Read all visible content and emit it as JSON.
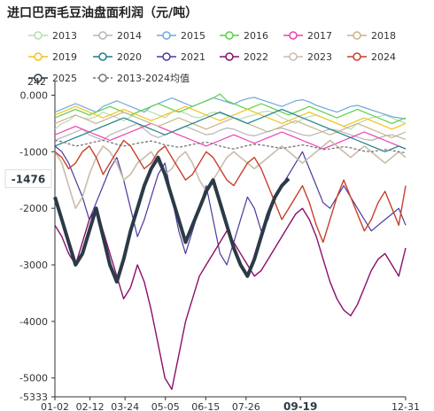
{
  "chart_data": {
    "type": "line",
    "title": "进口巴西毛豆油盘面利润（元/吨）",
    "x_ticks": [
      "01-02",
      "02-12",
      "03-24",
      "05-05",
      "06-15",
      "07-26",
      "09-19",
      "12-31"
    ],
    "x_highlight": "09-19",
    "y_ticks": [
      "0.000",
      "-1000",
      "-2000",
      "-3000",
      "-4000",
      "-5000",
      "-5333"
    ],
    "y_top_label": "242",
    "y_highlight": "-1476",
    "ylim": [
      -5333,
      242
    ],
    "series": [
      {
        "name": "2013",
        "color": "#b8dcb0",
        "dash": false,
        "width": 1.2,
        "values": [
          -600,
          -500,
          -450,
          -350,
          -400,
          -420,
          -380,
          -300,
          -350,
          -400,
          -450,
          -380,
          -300,
          -250,
          -300,
          -350,
          -400,
          -300,
          -280,
          -320,
          -380,
          -400,
          -350,
          -300,
          -320,
          -360,
          -400,
          -420,
          -380,
          -350,
          -300,
          -280,
          -320,
          -400,
          -450,
          -500,
          -420,
          -380,
          -350,
          -400,
          -450,
          -500,
          -550,
          -600,
          -500,
          -450,
          -400,
          -380,
          -350,
          -400,
          -450,
          -500
        ]
      },
      {
        "name": "2014",
        "color": "#b5b5b5",
        "dash": false,
        "width": 1.2,
        "values": [
          -800,
          -750,
          -700,
          -650,
          -600,
          -700,
          -750,
          -800,
          -700,
          -650,
          -600,
          -550,
          -500,
          -600,
          -700,
          -750,
          -700,
          -650,
          -600,
          -550,
          -600,
          -650,
          -700,
          -680,
          -620,
          -580,
          -600,
          -650,
          -700,
          -720,
          -680,
          -640,
          -600,
          -580,
          -620,
          -660,
          -700,
          -720,
          -680,
          -640,
          -600,
          -620,
          -660,
          -700,
          -740,
          -780,
          -800,
          -760,
          -720,
          -700,
          -740,
          -780
        ]
      },
      {
        "name": "2015",
        "color": "#6fa8dc",
        "dash": false,
        "width": 1.2,
        "values": [
          -300,
          -250,
          -200,
          -150,
          -200,
          -250,
          -300,
          -200,
          -150,
          -100,
          -150,
          -200,
          -250,
          -300,
          -200,
          -150,
          -100,
          -50,
          -100,
          -150,
          -200,
          -150,
          -100,
          -50,
          -80,
          -120,
          -160,
          -100,
          -60,
          -40,
          -80,
          -120,
          -160,
          -200,
          -150,
          -100,
          -80,
          -120,
          -180,
          -220,
          -260,
          -300,
          -250,
          -200,
          -180,
          -220,
          -260,
          -300,
          -340,
          -380,
          -400,
          -420
        ]
      },
      {
        "name": "2016",
        "color": "#5ccf4a",
        "dash": false,
        "width": 1.2,
        "values": [
          -400,
          -350,
          -300,
          -250,
          -300,
          -350,
          -300,
          -250,
          -200,
          -250,
          -300,
          -350,
          -300,
          -250,
          -200,
          -150,
          -200,
          -250,
          -300,
          -250,
          -200,
          -150,
          -100,
          -50,
          20,
          -100,
          -150,
          -200,
          -250,
          -200,
          -150,
          -200,
          -250,
          -300,
          -350,
          -300,
          -250,
          -200,
          -250,
          -300,
          -350,
          -400,
          -350,
          -300,
          -250,
          -300,
          -350,
          -400,
          -450,
          -500,
          -450,
          -400
        ]
      },
      {
        "name": "2017",
        "color": "#ef3fb0",
        "dash": false,
        "width": 1.2,
        "values": [
          -700,
          -650,
          -600,
          -550,
          -600,
          -650,
          -700,
          -750,
          -800,
          -750,
          -700,
          -650,
          -600,
          -550,
          -500,
          -550,
          -600,
          -650,
          -700,
          -750,
          -800,
          -850,
          -900,
          -850,
          -800,
          -750,
          -700,
          -750,
          -800,
          -850,
          -800,
          -750,
          -700,
          -650,
          -700,
          -750,
          -800,
          -850,
          -900,
          -950,
          -900,
          -850,
          -800,
          -750,
          -700,
          -650,
          -700,
          -750,
          -800,
          -850,
          -900,
          -950
        ]
      },
      {
        "name": "2018",
        "color": "#c8b48c",
        "dash": false,
        "width": 1.2,
        "values": [
          -500,
          -450,
          -400,
          -350,
          -400,
          -450,
          -500,
          -450,
          -400,
          -350,
          -300,
          -350,
          -400,
          -450,
          -500,
          -550,
          -500,
          -450,
          -400,
          -450,
          -500,
          -550,
          -600,
          -550,
          -500,
          -450,
          -400,
          -450,
          -500,
          -550,
          -600,
          -650,
          -600,
          -550,
          -500,
          -450,
          -500,
          -550,
          -600,
          -650,
          -700,
          -650,
          -600,
          -550,
          -500,
          -550,
          -600,
          -650,
          -700,
          -750,
          -700,
          -650
        ]
      },
      {
        "name": "2019",
        "color": "#f2c21b",
        "dash": false,
        "width": 1.2,
        "values": [
          -350,
          -300,
          -250,
          -200,
          -250,
          -300,
          -350,
          -400,
          -350,
          -300,
          -250,
          -300,
          -350,
          -400,
          -450,
          -400,
          -350,
          -300,
          -250,
          -200,
          -250,
          -300,
          -350,
          -400,
          -450,
          -400,
          -350,
          -300,
          -250,
          -300,
          -350,
          -400,
          -450,
          -500,
          -450,
          -400,
          -350,
          -300,
          -350,
          -400,
          -450,
          -500,
          -550,
          -500,
          -450,
          -400,
          -450,
          -500,
          -550,
          -600,
          -550,
          -500
        ]
      },
      {
        "name": "2020",
        "color": "#1c7f8c",
        "dash": false,
        "width": 1.2,
        "values": [
          -900,
          -850,
          -800,
          -750,
          -700,
          -650,
          -600,
          -550,
          -500,
          -450,
          -400,
          -450,
          -500,
          -550,
          -600,
          -650,
          -700,
          -650,
          -600,
          -550,
          -500,
          -450,
          -400,
          -350,
          -300,
          -350,
          -400,
          -450,
          -500,
          -450,
          -400,
          -350,
          -300,
          -250,
          -300,
          -350,
          -400,
          -450,
          -500,
          -550,
          -600,
          -650,
          -700,
          -750,
          -800,
          -850,
          -900,
          -950,
          -1000,
          -950,
          -900,
          -950
        ]
      },
      {
        "name": "2021",
        "color": "#4a3a9c",
        "dash": false,
        "width": 1.2,
        "values": [
          -900,
          -1000,
          -1200,
          -1500,
          -1800,
          -2200,
          -1900,
          -1600,
          -1300,
          -1100,
          -1500,
          -2000,
          -2500,
          -2200,
          -1800,
          -1400,
          -1200,
          -1800,
          -2400,
          -2800,
          -2400,
          -2000,
          -1600,
          -2200,
          -2800,
          -3000,
          -2600,
          -2200,
          -1800,
          -2000,
          -2400,
          -2200,
          -1800,
          -1600,
          -1400,
          -1200,
          -1000,
          -1300,
          -1600,
          -1900,
          -2000,
          -1800,
          -1600,
          -1800,
          -2000,
          -2200,
          -2400,
          -2300,
          -2200,
          -2100,
          -2000,
          -2300
        ]
      },
      {
        "name": "2022",
        "color": "#8a0f6a",
        "dash": false,
        "width": 1.4,
        "values": [
          -2300,
          -2500,
          -2800,
          -3000,
          -2600,
          -2200,
          -2000,
          -2400,
          -2800,
          -3200,
          -3600,
          -3400,
          -3000,
          -3300,
          -3800,
          -4400,
          -5000,
          -5200,
          -4600,
          -4000,
          -3600,
          -3200,
          -3000,
          -2800,
          -2600,
          -2400,
          -2600,
          -2800,
          -3000,
          -3200,
          -3100,
          -2900,
          -2700,
          -2500,
          -2300,
          -2100,
          -2000,
          -2200,
          -2500,
          -2900,
          -3300,
          -3600,
          -3800,
          -3900,
          -3700,
          -3400,
          -3100,
          -2900,
          -2800,
          -3000,
          -3200,
          -2700
        ]
      },
      {
        "name": "2023",
        "color": "#c9bcaa",
        "dash": false,
        "width": 1.6,
        "values": [
          -1000,
          -1200,
          -1600,
          -2000,
          -1800,
          -1400,
          -1100,
          -900,
          -1000,
          -1200,
          -1500,
          -1400,
          -1200,
          -1100,
          -1000,
          -1200,
          -1400,
          -1300,
          -1100,
          -1000,
          -1200,
          -1500,
          -1700,
          -1500,
          -1300,
          -1100,
          -1000,
          -1100,
          -1200,
          -1300,
          -1200,
          -1100,
          -1000,
          -900,
          -1000,
          -1100,
          -1200,
          -1100,
          -1000,
          -900,
          -800,
          -900,
          -1000,
          -1100,
          -1000,
          -900,
          -1000,
          -1100,
          -1200,
          -1100,
          -1000,
          -1100
        ]
      },
      {
        "name": "2024",
        "color": "#c8402b",
        "dash": false,
        "width": 1.4,
        "values": [
          -1000,
          -1100,
          -1300,
          -1200,
          -1000,
          -900,
          -1100,
          -1400,
          -1200,
          -1000,
          -800,
          -900,
          -1100,
          -1300,
          -1200,
          -1000,
          -900,
          -1100,
          -1300,
          -1500,
          -1400,
          -1200,
          -1000,
          -1100,
          -1300,
          -1500,
          -1600,
          -1400,
          -1200,
          -1100,
          -1300,
          -1600,
          -1900,
          -2200,
          -2000,
          -1800,
          -1600,
          -1900,
          -2300,
          -2600,
          -2200,
          -1800,
          -1500,
          -1800,
          -2100,
          -2400,
          -2200,
          -1900,
          -1700,
          -2000,
          -2300,
          -1600
        ]
      },
      {
        "name": "2025",
        "color": "#2b3a47",
        "dash": false,
        "width": 4,
        "values": [
          -1800,
          -2200,
          -2600,
          -3000,
          -2800,
          -2400,
          -2000,
          -2500,
          -3000,
          -3300,
          -2900,
          -2400,
          -2000,
          -1600,
          -1300,
          -1100,
          -1400,
          -1800,
          -2200,
          -2600,
          -2300,
          -2000,
          -1700,
          -1500,
          -1900,
          -2300,
          -2700,
          -3000,
          -3200,
          -2900,
          -2500,
          -2100,
          -1800,
          -1600,
          -1476
        ]
      },
      {
        "name": "2013-2024均值",
        "color": "#777777",
        "dash": true,
        "width": 1.3,
        "values": [
          -800,
          -820,
          -860,
          -900,
          -880,
          -850,
          -820,
          -800,
          -830,
          -870,
          -900,
          -880,
          -850,
          -830,
          -810,
          -840,
          -880,
          -900,
          -920,
          -900,
          -870,
          -850,
          -830,
          -860,
          -900,
          -930,
          -950,
          -920,
          -890,
          -870,
          -880,
          -900,
          -920,
          -940,
          -920,
          -900,
          -880,
          -900,
          -930,
          -960,
          -950,
          -930,
          -910,
          -930,
          -960,
          -990,
          -1000,
          -980,
          -960,
          -980,
          -1000,
          -1020
        ]
      }
    ]
  }
}
